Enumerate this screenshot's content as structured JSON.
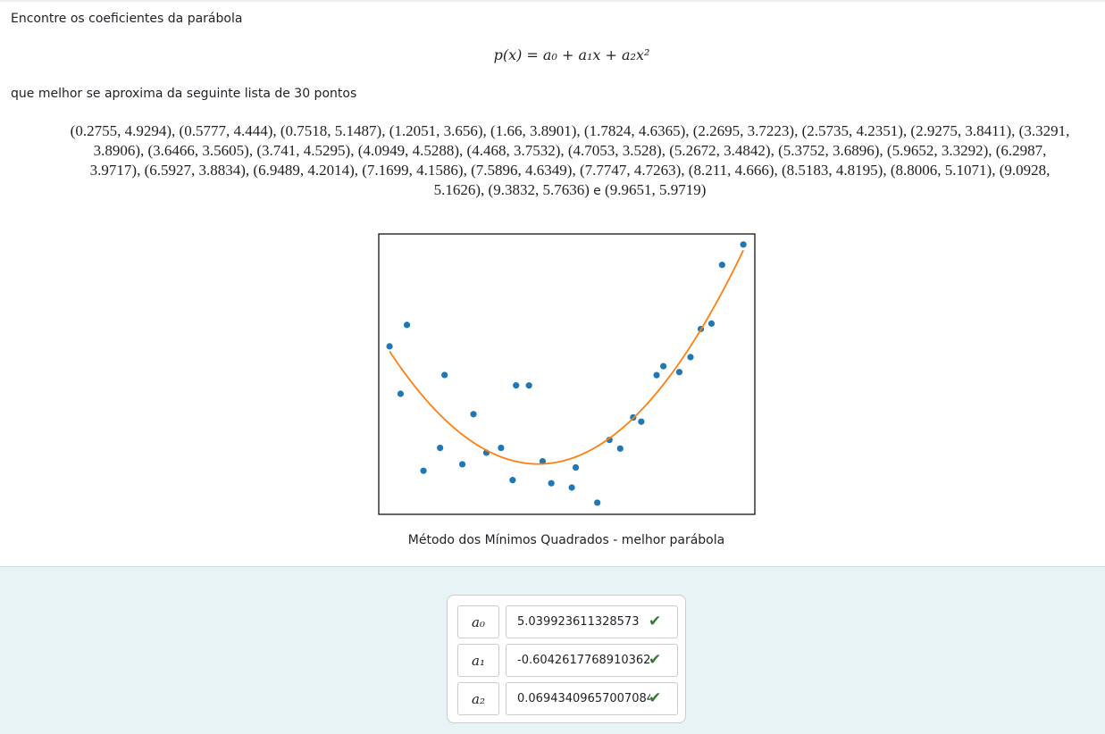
{
  "question": {
    "intro": "Encontre os coeficientes da parábola",
    "formula": "p(x) = a₀ + a₁x + a₂x²",
    "lead": "que melhor se aproxima da seguinte lista de 30 pontos",
    "conjunction": "e",
    "points": {
      "x": [
        0.2755,
        0.5777,
        0.7518,
        1.2051,
        1.66,
        1.7824,
        2.2695,
        2.5735,
        2.9275,
        3.3291,
        3.6466,
        3.741,
        4.0949,
        4.468,
        4.7053,
        5.2672,
        5.3752,
        5.9652,
        6.2987,
        6.5927,
        6.9489,
        7.1699,
        7.5896,
        7.7747,
        8.211,
        8.5183,
        8.8006,
        9.0928,
        9.3832,
        9.9651
      ],
      "y": [
        4.9294,
        4.444,
        5.1487,
        3.656,
        3.8901,
        4.6365,
        3.7223,
        4.2351,
        3.8411,
        3.8906,
        3.5605,
        4.5295,
        4.5288,
        3.7532,
        3.528,
        3.4842,
        3.6896,
        3.3292,
        3.9717,
        3.8834,
        4.2014,
        4.1586,
        4.6349,
        4.7263,
        4.666,
        4.8195,
        5.1071,
        5.1626,
        5.7636,
        5.9719
      ]
    }
  },
  "chart_data": {
    "type": "scatter",
    "caption": "Método dos Mínimos Quadrados - melhor parábola",
    "point_color": "#1f77b4",
    "curve_color": "#ff7f0e",
    "xlim": [
      -0.02,
      10.28
    ],
    "ylim": [
      3.21,
      6.08
    ]
  },
  "answers": [
    {
      "label": "a₀",
      "value": 5.039923611328573
    },
    {
      "label": "a₁",
      "value": -0.6042617768910362
    },
    {
      "label": "a₂",
      "value": 0.06943409657007084
    }
  ]
}
